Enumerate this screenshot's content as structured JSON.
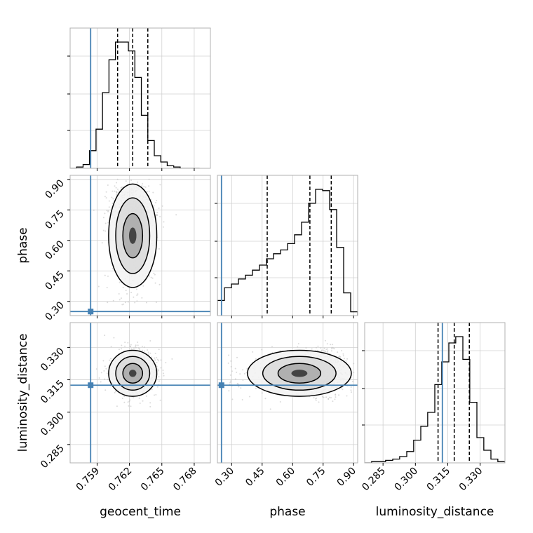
{
  "chart_data": {
    "type": "corner",
    "parameters": [
      "geocent_time",
      "phase",
      "luminosity_distance"
    ],
    "truth_color": "#4682b4",
    "truths": {
      "geocent_time": 0.7584,
      "phase": 0.25,
      "luminosity_distance": 0.3125
    },
    "ranges": {
      "geocent_time": [
        0.7565,
        0.7695
      ],
      "phase": [
        0.23,
        0.92
      ],
      "luminosity_distance": [
        0.2765,
        0.3415
      ]
    },
    "ticks": {
      "geocent_time": [
        0.759,
        0.762,
        0.765,
        0.768
      ],
      "phase": [
        0.3,
        0.45,
        0.6,
        0.75,
        0.9
      ],
      "luminosity_distance": [
        0.285,
        0.3,
        0.315,
        0.33
      ]
    },
    "tick_labels": {
      "geocent_time": [
        "0.759",
        "0.762",
        "0.765",
        "0.768"
      ],
      "phase": [
        "0.30",
        "0.45",
        "0.60",
        "0.75",
        "0.90"
      ],
      "luminosity_distance": [
        "0.285",
        "0.300",
        "0.315",
        "0.330"
      ]
    },
    "axis_labels": {
      "geocent_time": "geocent_time",
      "phase": "phase",
      "luminosity_distance": "luminosity_distance"
    },
    "quantiles": {
      "geocent_time": [
        0.7609,
        0.7623,
        0.7637
      ],
      "phase": [
        0.475,
        0.685,
        0.79
      ],
      "luminosity_distance": [
        0.3105,
        0.318,
        0.325
      ]
    },
    "histograms": {
      "geocent_time": {
        "edges": [
          0.7565,
          0.7571,
          0.7577,
          0.7583,
          0.7589,
          0.7595,
          0.7601,
          0.7607,
          0.7613,
          0.7619,
          0.7625,
          0.7631,
          0.7637,
          0.7643,
          0.7649,
          0.7655,
          0.7661,
          0.7667,
          0.7673,
          0.7679,
          0.7685
        ],
        "counts": [
          0,
          1,
          3,
          14,
          31,
          60,
          86,
          100,
          100,
          93,
          72,
          42,
          22,
          10,
          5,
          2,
          1,
          0,
          0,
          0
        ]
      },
      "phase": {
        "edges": [
          0.23,
          0.2645,
          0.299,
          0.3335,
          0.368,
          0.4025,
          0.437,
          0.4715,
          0.506,
          0.5405,
          0.575,
          0.6095,
          0.644,
          0.6785,
          0.713,
          0.7475,
          0.782,
          0.8165,
          0.851,
          0.8855,
          0.92
        ],
        "counts": [
          12,
          22,
          25,
          29,
          32,
          36,
          40,
          45,
          49,
          52,
          57,
          64,
          74,
          89,
          100,
          99,
          84,
          54,
          18,
          3
        ]
      },
      "luminosity_distance": {
        "edges": [
          0.2765,
          0.2797,
          0.283,
          0.2862,
          0.2895,
          0.2927,
          0.296,
          0.2992,
          0.3025,
          0.3057,
          0.309,
          0.3122,
          0.3155,
          0.3187,
          0.322,
          0.3252,
          0.3285,
          0.3317,
          0.335,
          0.3382,
          0.3415
        ],
        "counts": [
          0,
          1,
          1,
          2,
          3,
          5,
          9,
          18,
          29,
          40,
          62,
          80,
          95,
          100,
          82,
          48,
          20,
          10,
          3,
          1
        ]
      }
    },
    "grid": true,
    "legend": "none"
  }
}
